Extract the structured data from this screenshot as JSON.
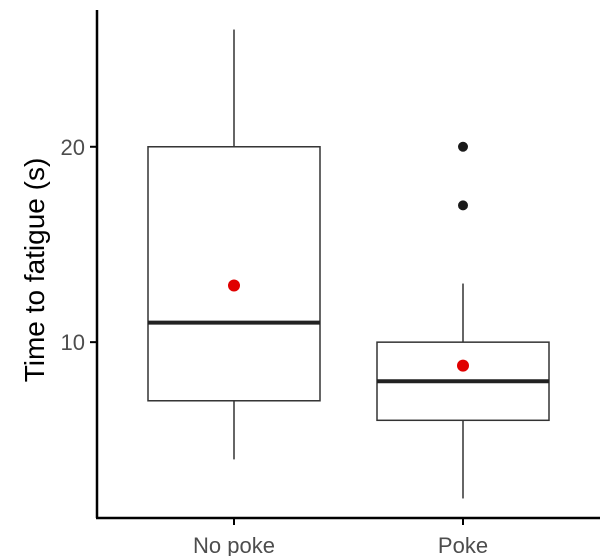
{
  "chart_data": {
    "type": "box",
    "title": "",
    "xlabel": "",
    "ylabel": "Time to fatigue (s)",
    "categories": [
      "No poke",
      "Poke"
    ],
    "y_ticks": [
      10,
      20
    ],
    "ylim": [
      1,
      27
    ],
    "grid": false,
    "legend": "none",
    "boxes": [
      {
        "category": "No poke",
        "whisker_low": 4,
        "q1": 7,
        "median": 11,
        "q3": 20,
        "whisker_high": 26,
        "mean": 12.9,
        "outliers": []
      },
      {
        "category": "Poke",
        "whisker_low": 2,
        "q1": 6,
        "median": 8,
        "q3": 10,
        "whisker_high": 13,
        "mean": 8.8,
        "outliers": [
          17,
          20
        ]
      }
    ],
    "colors": {
      "box_stroke": "#333333",
      "median": "#222222",
      "outlier": "#1a1a1a",
      "mean": "#e00000",
      "axis": "#000000",
      "tick_text": "#4d4d4d"
    }
  }
}
